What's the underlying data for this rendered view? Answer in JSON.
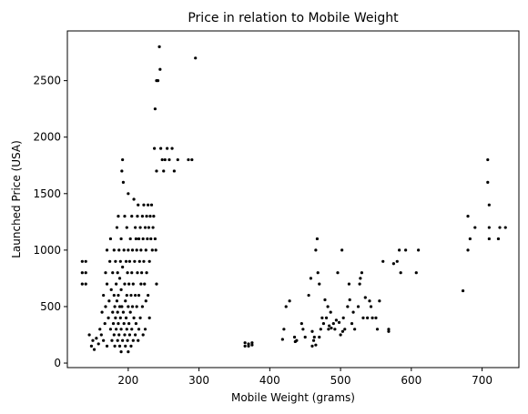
{
  "chart_data": {
    "type": "scatter",
    "title": "Price in relation to Mobile Weight",
    "xlabel": "Mobile Weight (grams)",
    "ylabel": "Launched Price (USA)",
    "xlim": [
      114,
      752
    ],
    "ylim": [
      -40,
      2940
    ],
    "xticks": [
      200,
      300,
      400,
      500,
      600,
      700
    ],
    "yticks": [
      0,
      500,
      1000,
      1500,
      2000,
      2500
    ],
    "grid": false,
    "legend": "none",
    "marker_color": "#000000",
    "series": [
      {
        "points": [
          [
            135,
            900
          ],
          [
            135,
            800
          ],
          [
            135,
            700
          ],
          [
            140,
            900
          ],
          [
            140,
            800
          ],
          [
            140,
            700
          ],
          [
            145,
            250
          ],
          [
            148,
            150
          ],
          [
            150,
            200
          ],
          [
            152,
            120
          ],
          [
            155,
            220
          ],
          [
            158,
            170
          ],
          [
            160,
            300
          ],
          [
            162,
            250
          ],
          [
            163,
            450
          ],
          [
            165,
            600
          ],
          [
            165,
            200
          ],
          [
            167,
            350
          ],
          [
            168,
            500
          ],
          [
            168,
            800
          ],
          [
            170,
            1000
          ],
          [
            170,
            700
          ],
          [
            170,
            150
          ],
          [
            172,
            400
          ],
          [
            173,
            550
          ],
          [
            174,
            900
          ],
          [
            175,
            300
          ],
          [
            175,
            1100
          ],
          [
            176,
            650
          ],
          [
            177,
            200
          ],
          [
            178,
            450
          ],
          [
            178,
            800
          ],
          [
            179,
            350
          ],
          [
            180,
            1000
          ],
          [
            180,
            600
          ],
          [
            180,
            250
          ],
          [
            181,
            500
          ],
          [
            181,
            150
          ],
          [
            182,
            900
          ],
          [
            182,
            400
          ],
          [
            183,
            700
          ],
          [
            183,
            300
          ],
          [
            184,
            1200
          ],
          [
            184,
            550
          ],
          [
            185,
            800
          ],
          [
            185,
            450
          ],
          [
            185,
            200
          ],
          [
            186,
            1300
          ],
          [
            186,
            600
          ],
          [
            186,
            350
          ],
          [
            187,
            1000
          ],
          [
            187,
            250
          ],
          [
            188,
            750
          ],
          [
            188,
            500
          ],
          [
            188,
            150
          ],
          [
            189,
            900
          ],
          [
            189,
            400
          ],
          [
            190,
            1100
          ],
          [
            190,
            650
          ],
          [
            190,
            300
          ],
          [
            190,
            100
          ],
          [
            191,
            1700
          ],
          [
            191,
            500
          ],
          [
            192,
            1800
          ],
          [
            192,
            850
          ],
          [
            192,
            200
          ],
          [
            193,
            1600
          ],
          [
            193,
            450
          ],
          [
            194,
            1000
          ],
          [
            194,
            350
          ],
          [
            195,
            1300
          ],
          [
            195,
            700
          ],
          [
            195,
            250
          ],
          [
            196,
            550
          ],
          [
            196,
            150
          ],
          [
            197,
            900
          ],
          [
            197,
            400
          ],
          [
            198,
            1200
          ],
          [
            198,
            600
          ],
          [
            198,
            300
          ],
          [
            199,
            800
          ],
          [
            199,
            200
          ],
          [
            200,
            1500
          ],
          [
            200,
            1000
          ],
          [
            200,
            500
          ],
          [
            200,
            100
          ],
          [
            201,
            700
          ],
          [
            201,
            350
          ],
          [
            202,
            900
          ],
          [
            202,
            250
          ],
          [
            203,
            1100
          ],
          [
            203,
            450
          ],
          [
            204,
            600
          ],
          [
            204,
            150
          ],
          [
            205,
            1300
          ],
          [
            205,
            800
          ],
          [
            205,
            300
          ],
          [
            206,
            1000
          ],
          [
            206,
            500
          ],
          [
            207,
            700
          ],
          [
            207,
            200
          ],
          [
            208,
            1450
          ],
          [
            208,
            400
          ],
          [
            209,
            900
          ],
          [
            210,
            1200
          ],
          [
            210,
            600
          ],
          [
            210,
            250
          ],
          [
            211,
            1100
          ],
          [
            211,
            350
          ],
          [
            212,
            1000
          ],
          [
            212,
            500
          ],
          [
            213,
            1300
          ],
          [
            213,
            800
          ],
          [
            214,
            1400
          ],
          [
            214,
            200
          ],
          [
            215,
            1100
          ],
          [
            215,
            600
          ],
          [
            215,
            300
          ],
          [
            216,
            900
          ],
          [
            217,
            1200
          ],
          [
            217,
            400
          ],
          [
            218,
            1000
          ],
          [
            218,
            700
          ],
          [
            219,
            800
          ],
          [
            220,
            1300
          ],
          [
            220,
            500
          ],
          [
            221,
            1100
          ],
          [
            221,
            250
          ],
          [
            222,
            1400
          ],
          [
            222,
            900
          ],
          [
            223,
            700
          ],
          [
            224,
            1200
          ],
          [
            224,
            300
          ],
          [
            225,
            1000
          ],
          [
            225,
            550
          ],
          [
            226,
            1300
          ],
          [
            226,
            800
          ],
          [
            227,
            1100
          ],
          [
            228,
            1400
          ],
          [
            228,
            600
          ],
          [
            229,
            1200
          ],
          [
            230,
            900
          ],
          [
            230,
            400
          ],
          [
            231,
            1300
          ],
          [
            232,
            1100
          ],
          [
            233,
            1400
          ],
          [
            234,
            1000
          ],
          [
            235,
            1200
          ],
          [
            236,
            1300
          ],
          [
            237,
            1900
          ],
          [
            238,
            2250
          ],
          [
            238,
            1100
          ],
          [
            239,
            1000
          ],
          [
            240,
            2500
          ],
          [
            240,
            1700
          ],
          [
            240,
            700
          ],
          [
            242,
            2500
          ],
          [
            244,
            2800
          ],
          [
            245,
            2600
          ],
          [
            246,
            1900
          ],
          [
            248,
            1800
          ],
          [
            250,
            1700
          ],
          [
            252,
            1800
          ],
          [
            255,
            1900
          ],
          [
            258,
            1800
          ],
          [
            262,
            1900
          ],
          [
            265,
            1700
          ],
          [
            270,
            1800
          ],
          [
            285,
            1800
          ],
          [
            290,
            1800
          ],
          [
            295,
            2700
          ],
          [
            365,
            150
          ],
          [
            365,
            180
          ],
          [
            370,
            150
          ],
          [
            370,
            170
          ],
          [
            375,
            180
          ],
          [
            375,
            160
          ],
          [
            418,
            210
          ],
          [
            420,
            300
          ],
          [
            423,
            500
          ],
          [
            428,
            550
          ],
          [
            435,
            230
          ],
          [
            436,
            190
          ],
          [
            438,
            200
          ],
          [
            445,
            350
          ],
          [
            447,
            300
          ],
          [
            450,
            230
          ],
          [
            455,
            600
          ],
          [
            458,
            750
          ],
          [
            460,
            150
          ],
          [
            460,
            280
          ],
          [
            462,
            200
          ],
          [
            463,
            230
          ],
          [
            465,
            1000
          ],
          [
            465,
            160
          ],
          [
            467,
            1100
          ],
          [
            468,
            800
          ],
          [
            470,
            700
          ],
          [
            470,
            230
          ],
          [
            472,
            300
          ],
          [
            474,
            400
          ],
          [
            476,
            350
          ],
          [
            478,
            560
          ],
          [
            480,
            400
          ],
          [
            482,
            500
          ],
          [
            483,
            300
          ],
          [
            484,
            330
          ],
          [
            486,
            450
          ],
          [
            487,
            310
          ],
          [
            490,
            350
          ],
          [
            492,
            300
          ],
          [
            494,
            380
          ],
          [
            496,
            800
          ],
          [
            498,
            360
          ],
          [
            500,
            250
          ],
          [
            502,
            1000
          ],
          [
            503,
            280
          ],
          [
            504,
            400
          ],
          [
            506,
            300
          ],
          [
            510,
            500
          ],
          [
            512,
            700
          ],
          [
            513,
            560
          ],
          [
            516,
            350
          ],
          [
            518,
            450
          ],
          [
            520,
            300
          ],
          [
            525,
            500
          ],
          [
            527,
            700
          ],
          [
            528,
            750
          ],
          [
            530,
            800
          ],
          [
            532,
            400
          ],
          [
            535,
            580
          ],
          [
            538,
            400
          ],
          [
            541,
            550
          ],
          [
            543,
            500
          ],
          [
            545,
            400
          ],
          [
            550,
            400
          ],
          [
            552,
            300
          ],
          [
            555,
            550
          ],
          [
            560,
            900
          ],
          [
            568,
            280
          ],
          [
            568,
            300
          ],
          [
            575,
            880
          ],
          [
            580,
            900
          ],
          [
            583,
            1000
          ],
          [
            585,
            800
          ],
          [
            592,
            1000
          ],
          [
            607,
            800
          ],
          [
            610,
            1000
          ],
          [
            673,
            640
          ],
          [
            680,
            1300
          ],
          [
            680,
            1000
          ],
          [
            683,
            1100
          ],
          [
            690,
            1200
          ],
          [
            708,
            1800
          ],
          [
            708,
            1600
          ],
          [
            710,
            1400
          ],
          [
            710,
            1200
          ],
          [
            710,
            1100
          ],
          [
            723,
            1100
          ],
          [
            725,
            1200
          ],
          [
            733,
            1200
          ]
        ]
      }
    ]
  }
}
